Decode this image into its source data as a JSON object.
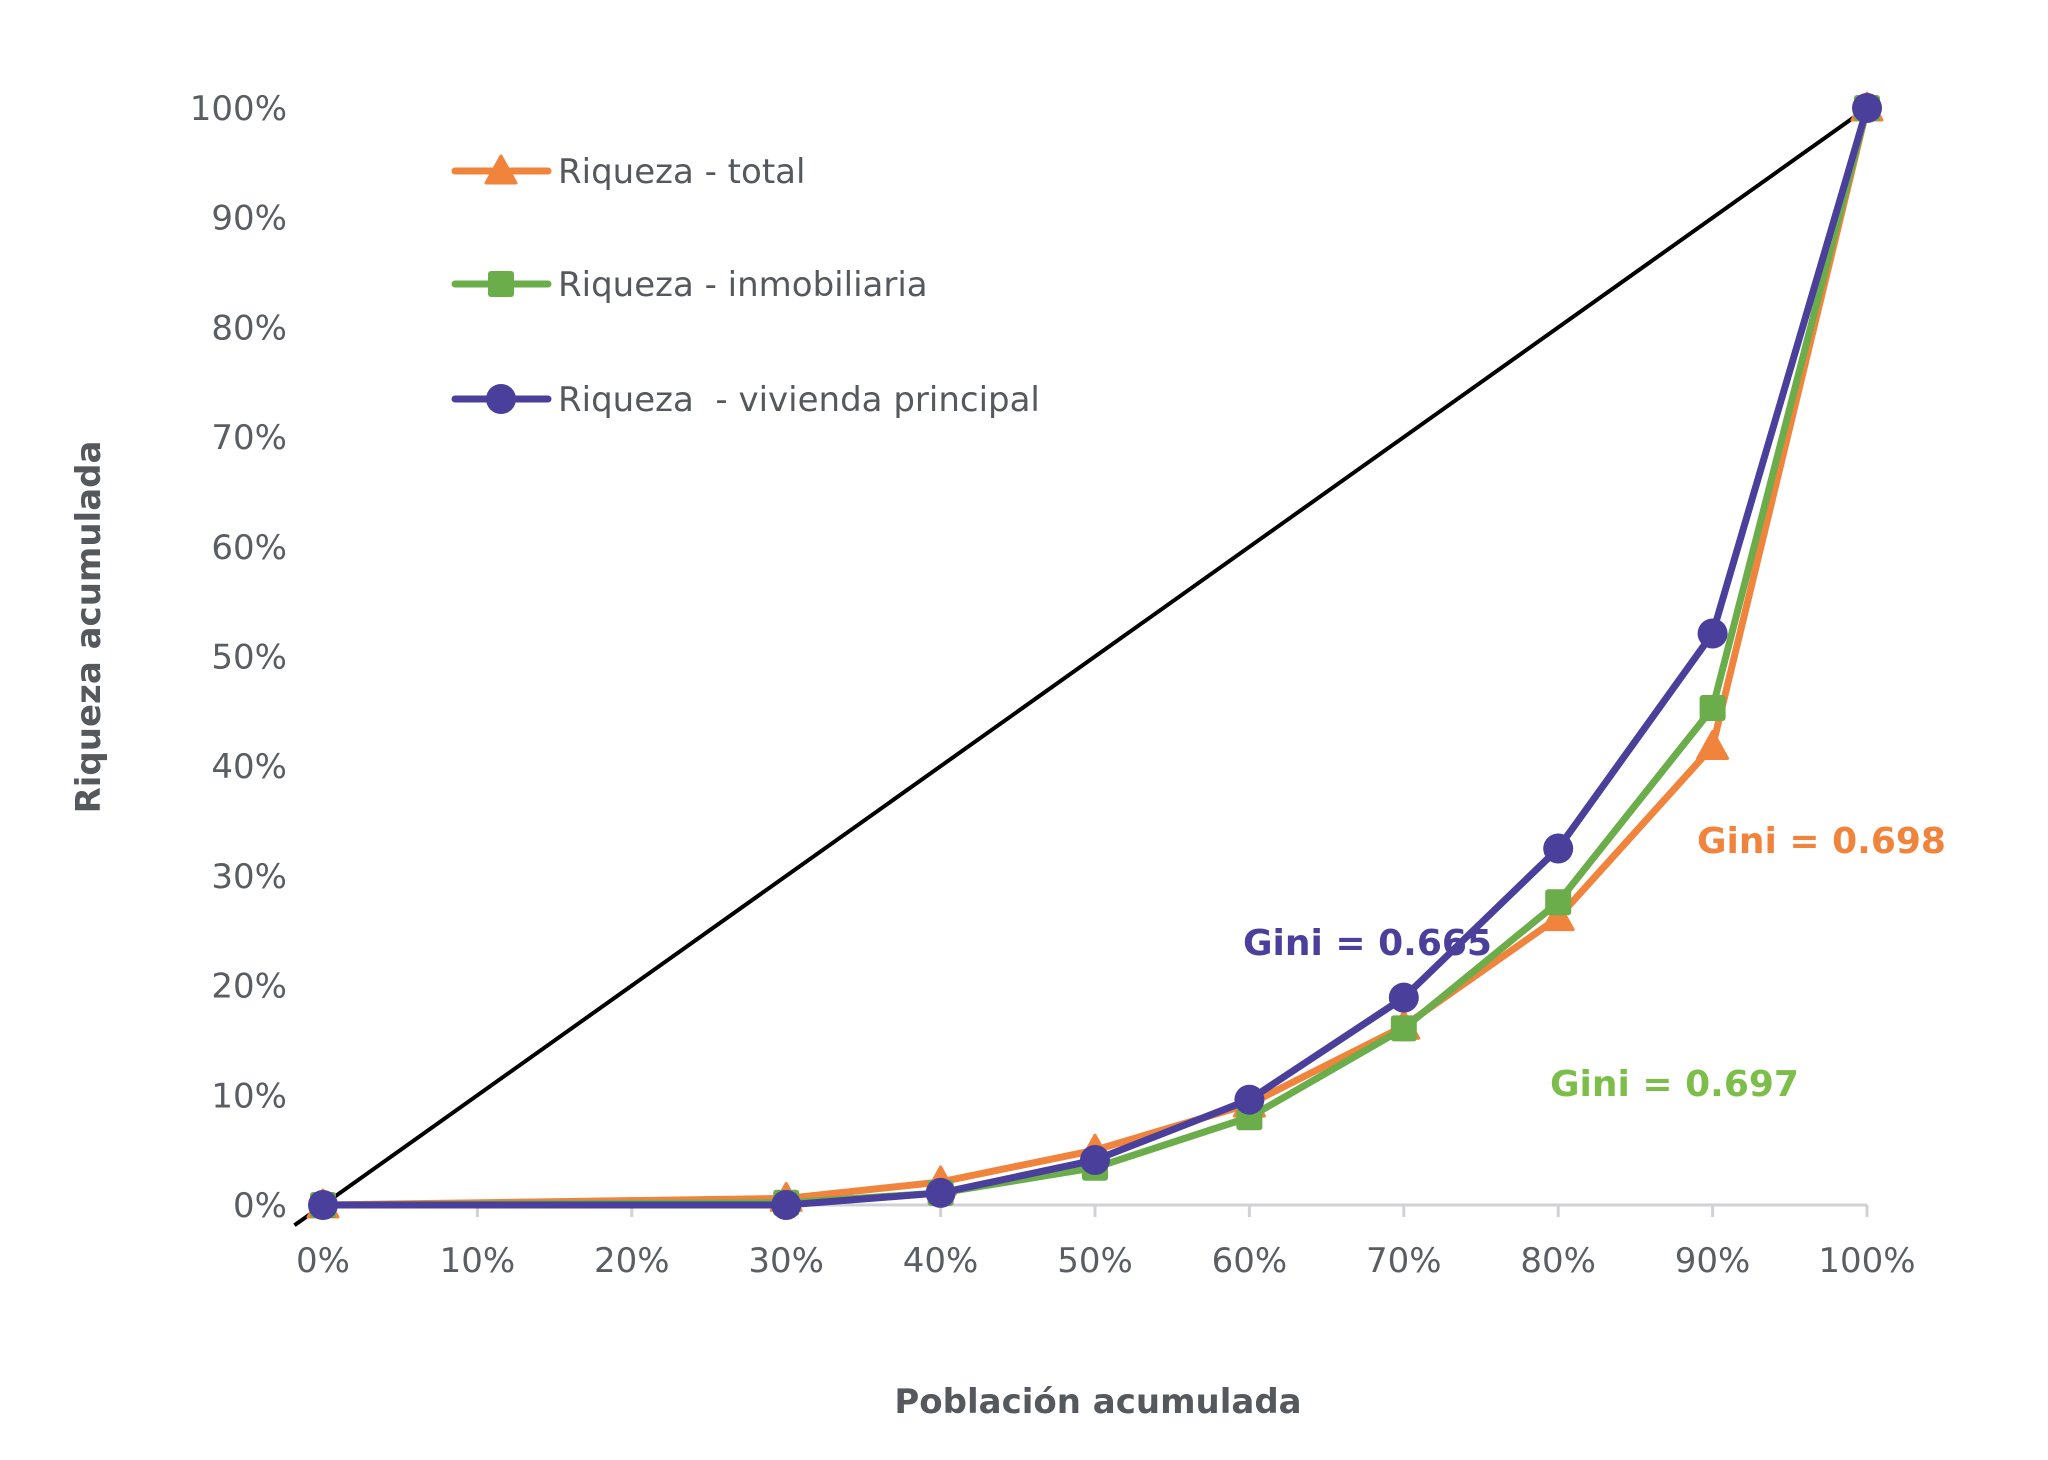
{
  "chart_data": {
    "type": "line",
    "title": "",
    "xlabel": "Población acumulada",
    "ylabel": "Riqueza acumulada",
    "xlim": [
      0,
      100
    ],
    "ylim": [
      0,
      100
    ],
    "x_ticks": [
      "0%",
      "10%",
      "20%",
      "30%",
      "40%",
      "50%",
      "60%",
      "70%",
      "80%",
      "90%",
      "100%"
    ],
    "y_ticks": [
      "0%",
      "10%",
      "20%",
      "30%",
      "40%",
      "50%",
      "60%",
      "70%",
      "80%",
      "90%",
      "100%"
    ],
    "grid": false,
    "legend_position": "top-left",
    "equality_line": {
      "x": [
        0,
        100
      ],
      "y": [
        0,
        100
      ],
      "color": "#000000"
    },
    "x": [
      0,
      30,
      40,
      50,
      60,
      70,
      80,
      90,
      100
    ],
    "series": [
      {
        "name": "Riqueza - total",
        "marker": "triangle",
        "color": "#f0843c",
        "values": [
          0,
          0.6,
          2.1,
          5.0,
          9.2,
          16.3,
          26.2,
          41.8,
          100
        ]
      },
      {
        "name": "Riqueza - inmobiliaria",
        "marker": "square",
        "color": "#6aad4a",
        "values": [
          0,
          0.2,
          1.1,
          3.4,
          8.0,
          16.1,
          27.6,
          45.3,
          100
        ]
      },
      {
        "name": "Riqueza  - vivienda principal",
        "marker": "circle",
        "color": "#4a3f9b",
        "values": [
          0,
          0,
          1.1,
          4.1,
          9.6,
          18.9,
          32.5,
          52.1,
          100
        ]
      }
    ],
    "annotations": [
      {
        "text": "Gini = 0.698",
        "color": "#f0843c",
        "series": "Riqueza - total"
      },
      {
        "text": "Gini = 0.665",
        "color": "#4a3f9b",
        "series": "Riqueza  - vivienda principal"
      },
      {
        "text": "Gini = 0.697",
        "color": "#7dbe4a",
        "series": "Riqueza - inmobiliaria"
      }
    ]
  }
}
